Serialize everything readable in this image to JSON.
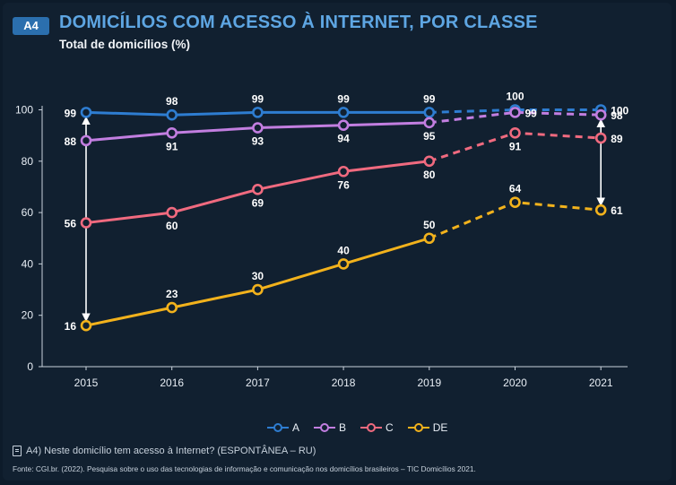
{
  "header": {
    "badge": "A4",
    "title": "DOMICÍLIOS COM ACESSO À INTERNET, POR CLASSE",
    "subtitle": "Total de domicílios (%)"
  },
  "footer": {
    "question": "A4) Neste domicílio tem acesso à Internet? (ESPONTÂNEA – RU)",
    "source": "Fonte: CGI.br. (2022). Pesquisa sobre o uso das tecnologias de informação e comunicação nos domicílios brasileiros – TIC Domicílios 2021."
  },
  "chart_data": {
    "type": "line",
    "title": "DOMICÍLIOS COM ACESSO À INTERNET, POR CLASSE",
    "subtitle": "Total de domicílios (%)",
    "categories": [
      "2015",
      "2016",
      "2017",
      "2018",
      "2019",
      "2020",
      "2021"
    ],
    "ylim": [
      0,
      100
    ],
    "yticks": [
      0,
      20,
      40,
      60,
      80,
      100
    ],
    "grid": false,
    "legend_position": "bottom-center",
    "dashed_from_index": 4,
    "series": [
      {
        "name": "A",
        "color": "#2e7dd1",
        "values": [
          99,
          98,
          99,
          99,
          99,
          100,
          100
        ],
        "label_pos": [
          "left",
          "above",
          "above",
          "above",
          "above",
          "above",
          "right"
        ]
      },
      {
        "name": "B",
        "color": "#c27ee0",
        "values": [
          88,
          91,
          93,
          94,
          95,
          99,
          98
        ],
        "label_pos": [
          "left",
          "below",
          "below",
          "below",
          "below",
          "right",
          "right"
        ]
      },
      {
        "name": "C",
        "color": "#f06a7f",
        "values": [
          56,
          60,
          69,
          76,
          80,
          91,
          89
        ],
        "label_pos": [
          "left",
          "below",
          "below",
          "below",
          "below",
          "below",
          "right"
        ]
      },
      {
        "name": "DE",
        "color": "#f2b21c",
        "values": [
          16,
          23,
          30,
          40,
          50,
          64,
          61
        ],
        "label_pos": [
          "left",
          "above",
          "above",
          "above",
          "above",
          "above",
          "right"
        ]
      }
    ],
    "gap_arrows": [
      {
        "category": "2015",
        "from": 16,
        "to": 99
      },
      {
        "category": "2021",
        "from": 61,
        "to": 98
      }
    ]
  }
}
